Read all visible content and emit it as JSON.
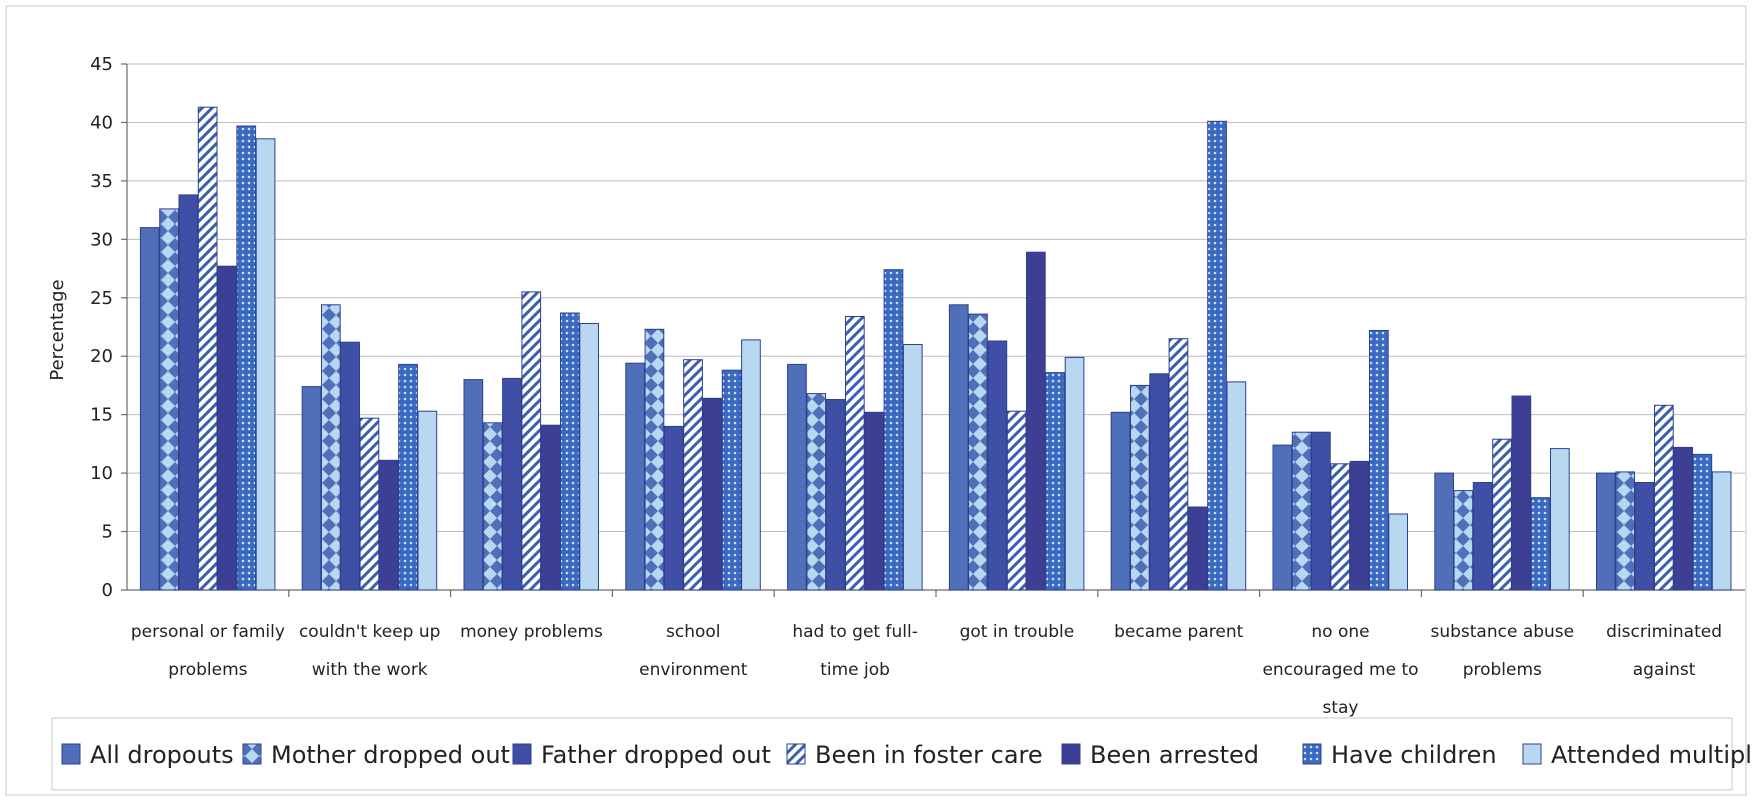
{
  "chart_data": {
    "type": "bar",
    "title": "",
    "xlabel": "",
    "ylabel": "Percentage",
    "ylim": [
      0,
      45
    ],
    "yticks": [
      0,
      5,
      10,
      15,
      20,
      25,
      30,
      35,
      40,
      45
    ],
    "grid": true,
    "legend_position": "bottom",
    "categories": [
      [
        "personal or family",
        "problems"
      ],
      [
        "couldn't keep up",
        "with the work"
      ],
      [
        "money problems"
      ],
      [
        "school",
        "environment"
      ],
      [
        "had to get full-",
        "time job"
      ],
      [
        "got in trouble"
      ],
      [
        "became parent"
      ],
      [
        "no one",
        "encouraged me to",
        "stay"
      ],
      [
        "substance abuse",
        "problems"
      ],
      [
        "discriminated",
        "against"
      ]
    ],
    "series": [
      {
        "name": "All dropouts",
        "color": "#4f6fb8",
        "pattern": "solid",
        "values": [
          31.0,
          17.4,
          18.0,
          19.4,
          19.3,
          24.4,
          15.2,
          12.4,
          10.0,
          10.0
        ]
      },
      {
        "name": "Mother dropped out",
        "color": "#4f6fb8",
        "pattern": "diamond",
        "values": [
          32.6,
          24.4,
          14.3,
          22.3,
          16.8,
          23.6,
          17.5,
          13.5,
          8.5,
          10.1
        ]
      },
      {
        "name": "Father dropped out",
        "color": "#3f4fa6",
        "pattern": "solid",
        "values": [
          33.8,
          21.2,
          18.1,
          14.0,
          16.3,
          21.3,
          18.5,
          13.5,
          9.2,
          9.2
        ]
      },
      {
        "name": "Been in foster care",
        "color": "#3a5fb3",
        "pattern": "diagonal",
        "values": [
          41.3,
          14.7,
          25.5,
          19.7,
          23.4,
          15.3,
          21.5,
          10.8,
          12.9,
          15.8
        ]
      },
      {
        "name": "Been arrested",
        "color": "#3d3f95",
        "pattern": "solid",
        "values": [
          27.7,
          11.1,
          14.1,
          16.4,
          15.2,
          28.9,
          7.1,
          11.0,
          16.6,
          12.2
        ]
      },
      {
        "name": "Have children",
        "color": "#3a69c2",
        "pattern": "dots",
        "values": [
          39.7,
          19.3,
          23.7,
          18.8,
          27.4,
          18.6,
          40.1,
          22.2,
          7.9,
          11.6
        ]
      },
      {
        "name": "Attended multiple HS",
        "color": "#b8d8f2",
        "pattern": "solid",
        "values": [
          38.6,
          15.3,
          22.8,
          21.4,
          21.0,
          19.9,
          17.8,
          6.5,
          12.1,
          10.1
        ]
      }
    ]
  }
}
